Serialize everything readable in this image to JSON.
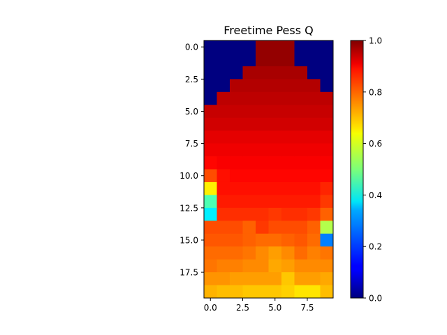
{
  "chart_data": {
    "type": "heatmap",
    "title": "Freetime Pess Q",
    "xlabel": "",
    "ylabel": "",
    "x_ticks": [
      "0.0",
      "2.5",
      "5.0",
      "7.5"
    ],
    "y_ticks": [
      "0.0",
      "2.5",
      "5.0",
      "7.5",
      "10.0",
      "12.5",
      "15.0",
      "17.5"
    ],
    "colorbar_ticks": [
      "0.0",
      "0.2",
      "0.4",
      "0.6",
      "0.8",
      "1.0"
    ],
    "colormap": "jet",
    "vmin": 0.0,
    "vmax": 1.0,
    "rows": 20,
    "cols": 10,
    "grid": false,
    "values": [
      [
        0.0,
        0.0,
        0.0,
        0.0,
        0.98,
        0.98,
        0.98,
        0.0,
        0.0,
        0.0
      ],
      [
        0.0,
        0.0,
        0.0,
        0.0,
        0.98,
        0.98,
        0.98,
        0.0,
        0.0,
        0.0
      ],
      [
        0.0,
        0.0,
        0.0,
        0.96,
        0.96,
        0.96,
        0.96,
        0.96,
        0.0,
        0.0
      ],
      [
        0.0,
        0.0,
        0.95,
        0.95,
        0.95,
        0.95,
        0.95,
        0.95,
        0.95,
        0.0
      ],
      [
        0.0,
        0.94,
        0.94,
        0.94,
        0.94,
        0.94,
        0.94,
        0.94,
        0.94,
        0.94
      ],
      [
        0.93,
        0.93,
        0.93,
        0.93,
        0.93,
        0.93,
        0.93,
        0.93,
        0.93,
        0.93
      ],
      [
        0.92,
        0.92,
        0.92,
        0.92,
        0.92,
        0.92,
        0.92,
        0.92,
        0.92,
        0.92
      ],
      [
        0.9,
        0.9,
        0.9,
        0.9,
        0.9,
        0.9,
        0.9,
        0.9,
        0.9,
        0.9
      ],
      [
        0.89,
        0.89,
        0.89,
        0.89,
        0.89,
        0.89,
        0.89,
        0.89,
        0.89,
        0.89
      ],
      [
        0.87,
        0.88,
        0.88,
        0.88,
        0.88,
        0.88,
        0.88,
        0.88,
        0.88,
        0.88
      ],
      [
        0.8,
        0.86,
        0.87,
        0.87,
        0.87,
        0.87,
        0.87,
        0.87,
        0.87,
        0.87
      ],
      [
        0.64,
        0.86,
        0.86,
        0.86,
        0.86,
        0.86,
        0.86,
        0.86,
        0.86,
        0.84
      ],
      [
        0.45,
        0.85,
        0.85,
        0.85,
        0.85,
        0.85,
        0.85,
        0.85,
        0.85,
        0.82
      ],
      [
        0.36,
        0.83,
        0.83,
        0.83,
        0.83,
        0.82,
        0.83,
        0.83,
        0.82,
        0.78
      ],
      [
        0.8,
        0.8,
        0.8,
        0.78,
        0.82,
        0.8,
        0.8,
        0.8,
        0.78,
        0.55
      ],
      [
        0.79,
        0.79,
        0.79,
        0.78,
        0.77,
        0.77,
        0.78,
        0.79,
        0.77,
        0.25
      ],
      [
        0.77,
        0.77,
        0.77,
        0.76,
        0.74,
        0.72,
        0.74,
        0.77,
        0.75,
        0.76
      ],
      [
        0.76,
        0.75,
        0.75,
        0.74,
        0.74,
        0.71,
        0.72,
        0.74,
        0.74,
        0.74
      ],
      [
        0.73,
        0.73,
        0.72,
        0.72,
        0.72,
        0.72,
        0.68,
        0.72,
        0.72,
        0.71
      ],
      [
        0.7,
        0.69,
        0.69,
        0.68,
        0.68,
        0.68,
        0.67,
        0.65,
        0.65,
        0.69
      ]
    ]
  }
}
